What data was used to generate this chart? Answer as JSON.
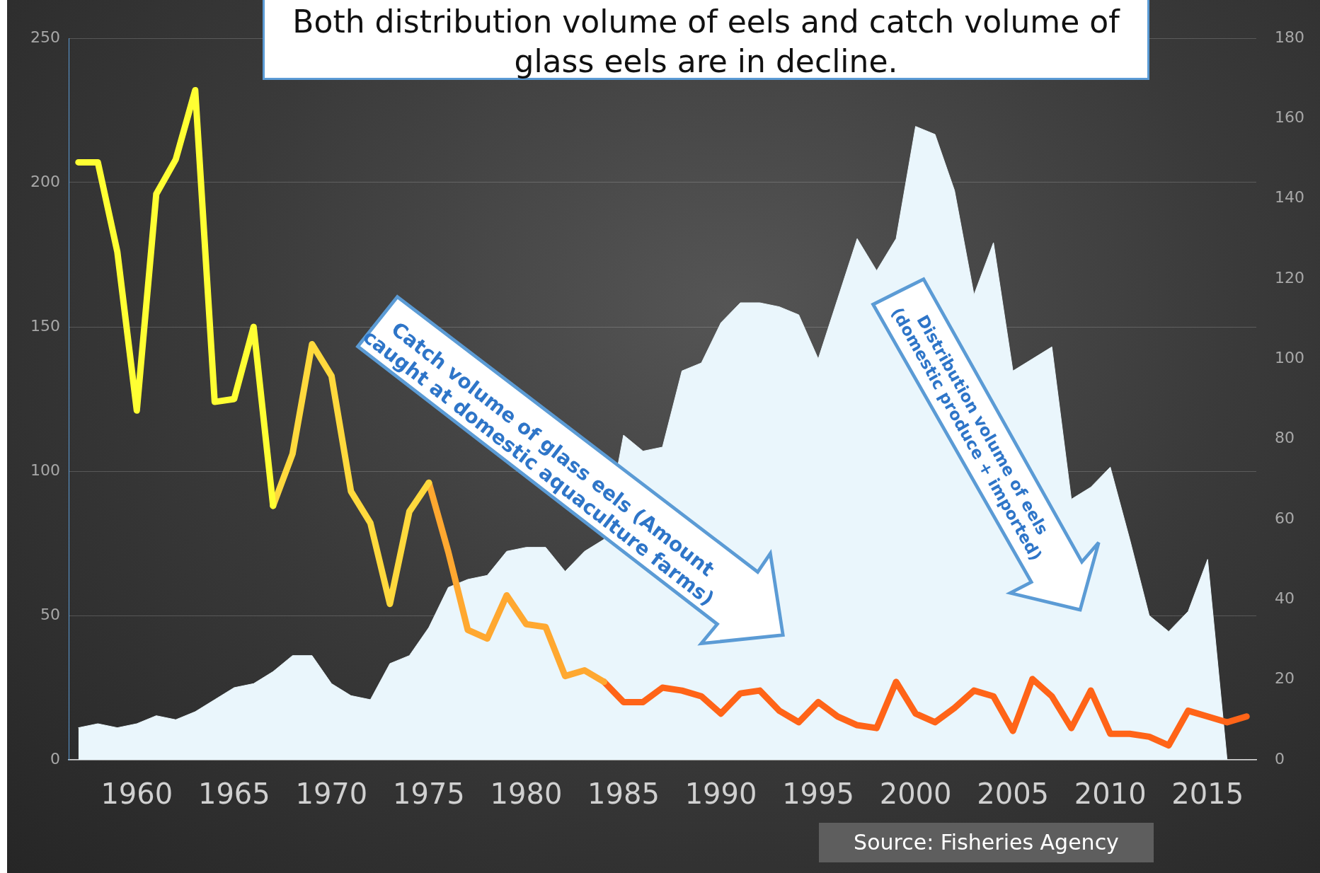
{
  "chart_data": {
    "type": "line",
    "title": "Both distribution volume of eels and catch volume of glass eels are in decline.",
    "series": [
      {
        "type": "area",
        "axis": "y2",
        "color": "#eaf6fc",
        "x": [
          1957,
          1958,
          1959,
          1960,
          1961,
          1962,
          1963,
          1964,
          1965,
          1966,
          1967,
          1968,
          1969,
          1970,
          1971,
          1972,
          1973,
          1974,
          1975,
          1976,
          1977,
          1978,
          1979,
          1980,
          1981,
          1982,
          1983,
          1984,
          1985,
          1986,
          1987,
          1988,
          1989,
          1990,
          1991,
          1992,
          1993,
          1994,
          1995,
          1996,
          1997,
          1998,
          1999,
          2000,
          2001,
          2002,
          2003,
          2004,
          2005,
          2006,
          2007,
          2008,
          2009,
          2010,
          2011,
          2012,
          2013,
          2014,
          2015,
          2016
        ],
        "values": [
          8,
          9,
          8,
          9,
          11,
          10,
          12,
          15,
          18,
          19,
          22,
          26,
          26,
          19,
          16,
          15,
          24,
          26,
          33,
          43,
          45,
          46,
          52,
          53,
          53,
          47,
          52,
          55,
          81,
          77,
          78,
          97,
          99,
          109,
          114,
          114,
          113,
          111,
          100,
          115,
          130,
          122,
          130,
          158,
          156,
          142,
          116,
          129,
          97,
          100,
          103,
          65,
          68,
          73,
          55,
          36,
          32,
          37,
          50,
          0
        ]
      },
      {
        "color": "#ffff33",
        "x": [
          1957,
          1958,
          1959,
          1960,
          1961,
          1962,
          1963,
          1964,
          1965,
          1966,
          1967
        ],
        "values": [
          207,
          207,
          176,
          121,
          196,
          208,
          232,
          124,
          125,
          150,
          88
        ]
      },
      {
        "color": "#ffd93d",
        "x": [
          1967,
          1968,
          1969,
          1970,
          1971,
          1972,
          1973,
          1974,
          1975
        ],
        "values": [
          88,
          106,
          144,
          133,
          93,
          82,
          54,
          86,
          96
        ]
      },
      {
        "color": "#ffa830",
        "x": [
          1975,
          1976,
          1977,
          1978,
          1979,
          1980,
          1981,
          1982,
          1983,
          1984
        ],
        "values": [
          96,
          72,
          45,
          42,
          57,
          47,
          46,
          29,
          31,
          27
        ]
      },
      {
        "color": "#ff6418",
        "x": [
          1984,
          1985,
          1986,
          1987,
          1988,
          1989,
          1990,
          1991,
          1992,
          1993,
          1994,
          1995,
          1996,
          1997,
          1998,
          1999,
          2000,
          2001,
          2002,
          2003,
          2004,
          2005,
          2006,
          2007,
          2008,
          2009,
          2010,
          2011,
          2012,
          2013,
          2014,
          2015,
          2016,
          2017
        ],
        "values": [
          27,
          20,
          20,
          25,
          24,
          22,
          16,
          23,
          24,
          17,
          13,
          20,
          15,
          12,
          11,
          27,
          16,
          13,
          18,
          24,
          22,
          10,
          28,
          22,
          11,
          24,
          9,
          9,
          8,
          5,
          17,
          15,
          13,
          15
        ]
      }
    ],
    "xlim": [
      1956.5,
      2017.5
    ],
    "xticks": [
      1960,
      1965,
      1970,
      1975,
      1980,
      1985,
      1990,
      1995,
      2000,
      2005,
      2010,
      2015
    ],
    "ylim": [
      0,
      250
    ],
    "yticks": [
      0,
      50,
      100,
      150,
      200,
      250
    ],
    "y2lim": [
      0,
      180
    ],
    "y2ticks": [
      0,
      20,
      40,
      60,
      80,
      100,
      120,
      140,
      160,
      180
    ],
    "grid": "y",
    "legend": false,
    "marker": "none",
    "line_style": "solid",
    "annotations": [
      "Catch volume of glass eels (Amount\ncaught at domestic aquaculture farms)",
      "Distribution volume of eels\n(domestic produce + imported)",
      "Source: Fisheries Agency"
    ]
  }
}
